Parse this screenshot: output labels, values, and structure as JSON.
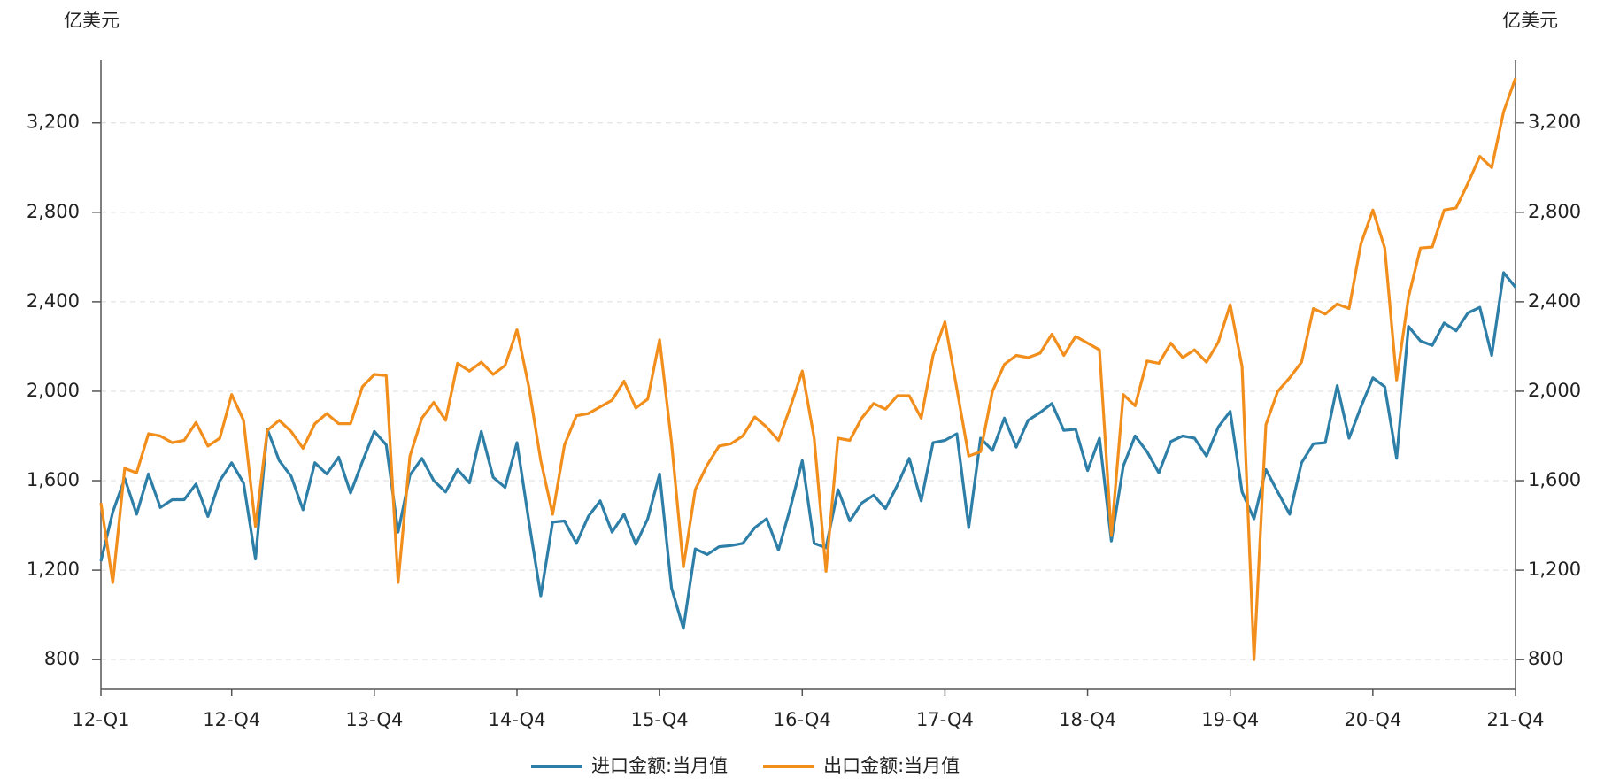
{
  "chart_data": {
    "type": "line",
    "y_label": "亿美元",
    "y2_label": "亿美元",
    "categories": [
      "12-Q1",
      null,
      null,
      null,
      null,
      null,
      null,
      null,
      null,
      null,
      null,
      "12-Q4",
      null,
      null,
      null,
      null,
      null,
      null,
      null,
      null,
      null,
      null,
      null,
      "13-Q4",
      null,
      null,
      null,
      null,
      null,
      null,
      null,
      null,
      null,
      null,
      null,
      "14-Q4",
      null,
      null,
      null,
      null,
      null,
      null,
      null,
      null,
      null,
      null,
      null,
      "15-Q4",
      null,
      null,
      null,
      null,
      null,
      null,
      null,
      null,
      null,
      null,
      null,
      "16-Q4",
      null,
      null,
      null,
      null,
      null,
      null,
      null,
      null,
      null,
      null,
      null,
      "17-Q4",
      null,
      null,
      null,
      null,
      null,
      null,
      null,
      null,
      null,
      null,
      null,
      "18-Q4",
      null,
      null,
      null,
      null,
      null,
      null,
      null,
      null,
      null,
      null,
      null,
      "19-Q4",
      null,
      null,
      null,
      null,
      null,
      null,
      null,
      null,
      null,
      null,
      null,
      "20-Q4",
      null,
      null,
      null,
      null,
      null,
      null,
      null,
      null,
      null,
      null,
      null,
      "21-Q4"
    ],
    "series": [
      {
        "name": "进口金额:当月值",
        "color": "#2e7fa8",
        "values": [
          1240,
          1460,
          1610,
          1450,
          1630,
          1480,
          1515,
          1515,
          1585,
          1440,
          1600,
          1680,
          1590,
          1250,
          1830,
          1690,
          1620,
          1470,
          1680,
          1630,
          1705,
          1545,
          1685,
          1820,
          1760,
          1370,
          1625,
          1700,
          1600,
          1550,
          1650,
          1590,
          1820,
          1615,
          1570,
          1770,
          1420,
          1085,
          1415,
          1420,
          1320,
          1440,
          1510,
          1370,
          1450,
          1315,
          1430,
          1630,
          1120,
          940,
          1295,
          1270,
          1305,
          1310,
          1320,
          1390,
          1430,
          1290,
          1480,
          1690,
          1320,
          1300,
          1560,
          1420,
          1500,
          1535,
          1475,
          1580,
          1700,
          1510,
          1770,
          1780,
          1810,
          1390,
          1790,
          1735,
          1880,
          1750,
          1870,
          1905,
          1945,
          1825,
          1830,
          1645,
          1790,
          1330,
          1665,
          1800,
          1730,
          1635,
          1775,
          1800,
          1790,
          1710,
          1840,
          1910,
          1550,
          1430,
          1650,
          1550,
          1450,
          1680,
          1765,
          1770,
          2025,
          1790,
          1930,
          2060,
          2020,
          1700,
          2290,
          2225,
          2205,
          2305,
          2270,
          2350,
          2375,
          2160,
          2530,
          2465
        ]
      },
      {
        "name": "出口金额:当月值",
        "color": "#f28e1c",
        "values": [
          1500,
          1145,
          1655,
          1635,
          1810,
          1800,
          1770,
          1780,
          1860,
          1755,
          1790,
          1985,
          1870,
          1395,
          1825,
          1870,
          1820,
          1745,
          1855,
          1900,
          1855,
          1855,
          2020,
          2075,
          2070,
          1145,
          1710,
          1880,
          1950,
          1870,
          2125,
          2090,
          2130,
          2075,
          2115,
          2275,
          2020,
          1690,
          1450,
          1760,
          1890,
          1900,
          1930,
          1960,
          2045,
          1925,
          1965,
          2230,
          1770,
          1215,
          1560,
          1670,
          1755,
          1765,
          1800,
          1885,
          1840,
          1780,
          1930,
          2090,
          1790,
          1195,
          1790,
          1780,
          1880,
          1945,
          1920,
          1980,
          1980,
          1880,
          2160,
          2310,
          2010,
          1710,
          1730,
          2000,
          2120,
          2160,
          2150,
          2170,
          2255,
          2160,
          2245,
          2215,
          2185,
          1355,
          1985,
          1935,
          2135,
          2125,
          2215,
          2150,
          2185,
          2130,
          2220,
          2387,
          2110,
          800,
          1850,
          2000,
          2060,
          2130,
          2370,
          2345,
          2390,
          2370,
          2660,
          2810,
          2640,
          2050,
          2420,
          2640,
          2645,
          2810,
          2820,
          2930,
          3050,
          3000,
          3250,
          3400
        ]
      }
    ],
    "ylim": [
      670,
      3480
    ],
    "yticks": [
      {
        "value": 800,
        "label": "800"
      },
      {
        "value": 1200,
        "label": "1,200"
      },
      {
        "value": 1600,
        "label": "1,600"
      },
      {
        "value": 2000,
        "label": "2,000"
      },
      {
        "value": 2400,
        "label": "2,400"
      },
      {
        "value": 2800,
        "label": "2,800"
      },
      {
        "value": 3200,
        "label": "3,200"
      }
    ],
    "y2lim": [
      670,
      3480
    ],
    "y2ticks": [
      {
        "value": 800,
        "label": "800"
      },
      {
        "value": 1200,
        "label": "1,200"
      },
      {
        "value": 1600,
        "label": "1,600"
      },
      {
        "value": 2000,
        "label": "2,000"
      },
      {
        "value": 2400,
        "label": "2,400"
      },
      {
        "value": 2800,
        "label": "2,800"
      },
      {
        "value": 3200,
        "label": "3,200"
      }
    ],
    "grid": true
  }
}
